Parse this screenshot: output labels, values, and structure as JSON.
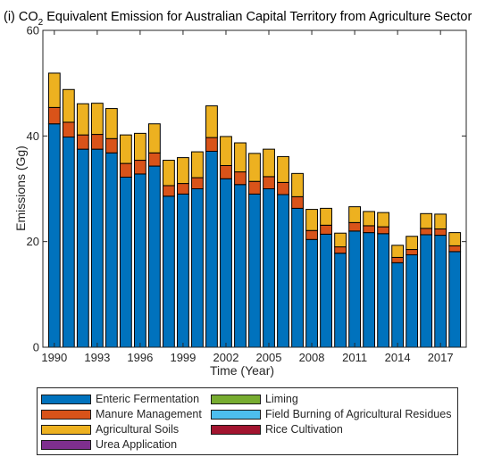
{
  "chart_data": {
    "type": "bar",
    "stacked": true,
    "title_prefix": "(i) CO",
    "title_subscript": "2",
    "title_suffix": " Equivalent Emission for Australian Capital Territory from Agriculture Sector",
    "xlabel": "Time (Year)",
    "ylabel": "Emissions (Gg)",
    "ylim": [
      0,
      60
    ],
    "yticks": [
      0,
      20,
      40,
      60
    ],
    "xlim": [
      1989.2,
      2018.8
    ],
    "xticks": [
      1990,
      1993,
      1996,
      1999,
      2002,
      2005,
      2008,
      2011,
      2014,
      2017
    ],
    "grid": false,
    "legend_position": "bottom",
    "x": [
      1990,
      1991,
      1992,
      1993,
      1994,
      1995,
      1996,
      1997,
      1998,
      1999,
      2000,
      2001,
      2002,
      2003,
      2004,
      2005,
      2006,
      2007,
      2008,
      2009,
      2010,
      2011,
      2012,
      2013,
      2014,
      2015,
      2016,
      2017,
      2018
    ],
    "series": [
      {
        "name": "Enteric Fermentation",
        "color": "#0072BD",
        "values": [
          42.3,
          39.8,
          37.5,
          37.5,
          36.8,
          32.2,
          32.8,
          34.3,
          28.6,
          29.0,
          30.0,
          37.1,
          31.9,
          30.8,
          29.0,
          30.0,
          28.9,
          26.3,
          20.4,
          21.4,
          17.8,
          22.0,
          21.7,
          21.5,
          16.0,
          17.5,
          21.3,
          21.2,
          18.1
        ]
      },
      {
        "name": "Manure Management",
        "color": "#D95319",
        "values": [
          3.1,
          2.8,
          2.7,
          2.8,
          2.7,
          2.6,
          2.6,
          2.5,
          2.0,
          2.0,
          2.1,
          2.6,
          2.5,
          2.4,
          2.4,
          2.3,
          2.3,
          2.2,
          1.7,
          1.7,
          1.2,
          1.6,
          1.3,
          1.3,
          1.0,
          1.0,
          1.2,
          1.2,
          1.1
        ]
      },
      {
        "name": "Agricultural Soils",
        "color": "#EDB120",
        "values": [
          6.5,
          6.2,
          5.9,
          5.9,
          5.7,
          5.4,
          5.1,
          5.5,
          4.8,
          4.9,
          4.9,
          6.0,
          5.5,
          5.5,
          5.3,
          5.2,
          4.9,
          4.4,
          4.0,
          3.2,
          2.6,
          3.0,
          2.7,
          2.7,
          2.3,
          2.5,
          2.8,
          2.8,
          2.5
        ]
      },
      {
        "name": "Urea Application",
        "color": "#7E2F8E",
        "values": [
          0,
          0,
          0,
          0,
          0,
          0,
          0,
          0,
          0,
          0,
          0,
          0,
          0,
          0,
          0,
          0,
          0,
          0,
          0,
          0,
          0,
          0,
          0,
          0,
          0,
          0,
          0,
          0,
          0
        ]
      },
      {
        "name": "Liming",
        "color": "#77AC30",
        "values": [
          0,
          0,
          0,
          0,
          0,
          0,
          0,
          0,
          0,
          0,
          0,
          0,
          0,
          0,
          0,
          0,
          0,
          0,
          0,
          0,
          0,
          0,
          0,
          0,
          0,
          0,
          0,
          0,
          0
        ]
      },
      {
        "name": "Field Burning of Agricultural Residues",
        "color": "#4DBEEE",
        "values": [
          0,
          0,
          0,
          0,
          0,
          0,
          0,
          0,
          0,
          0,
          0,
          0,
          0,
          0,
          0,
          0,
          0,
          0,
          0,
          0,
          0,
          0,
          0,
          0,
          0,
          0,
          0,
          0,
          0
        ]
      },
      {
        "name": "Rice Cultivation",
        "color": "#A2142F",
        "values": [
          0,
          0,
          0,
          0,
          0,
          0,
          0,
          0,
          0,
          0,
          0,
          0,
          0,
          0,
          0,
          0,
          0,
          0,
          0,
          0,
          0,
          0,
          0,
          0,
          0,
          0,
          0,
          0,
          0
        ]
      }
    ]
  }
}
